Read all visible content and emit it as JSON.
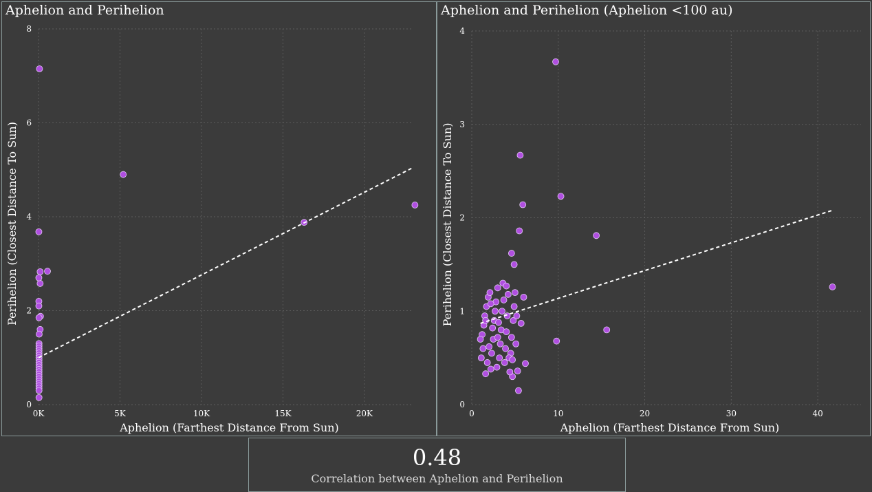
{
  "colors": {
    "background": "#3b3b3b",
    "point": "#b04fe0",
    "point_stroke": "#e2c8f5",
    "trend": "#ffffff",
    "border": "#8a9a9a"
  },
  "chart_data": [
    {
      "type": "scatter",
      "title": "Aphelion and Perihelion",
      "xlabel": "Aphelion (Farthest Distance From Sun)",
      "ylabel": "Perihelion (Closest Distance To Sun)",
      "xlim": [
        0,
        23000
      ],
      "ylim": [
        0,
        8
      ],
      "x_ticks": [
        0,
        5000,
        10000,
        15000,
        20000
      ],
      "x_tick_labels": [
        "0K",
        "5K",
        "10K",
        "15K",
        "20K"
      ],
      "y_ticks": [
        0,
        2,
        4,
        6,
        8
      ],
      "y_tick_labels": [
        "0",
        "2",
        "4",
        "6",
        "8"
      ],
      "grid": true,
      "trend_line": {
        "x": [
          0,
          23000
        ],
        "y": [
          1.0,
          5.05
        ]
      },
      "points": [
        {
          "x": 60,
          "y": 7.15
        },
        {
          "x": 5200,
          "y": 4.9
        },
        {
          "x": 16300,
          "y": 3.88
        },
        {
          "x": 23100,
          "y": 4.25
        },
        {
          "x": 20,
          "y": 3.68
        },
        {
          "x": 100,
          "y": 2.83
        },
        {
          "x": 550,
          "y": 2.84
        },
        {
          "x": 100,
          "y": 2.58
        },
        {
          "x": 20,
          "y": 2.7
        },
        {
          "x": 20,
          "y": 2.2
        },
        {
          "x": 20,
          "y": 2.1
        },
        {
          "x": 120,
          "y": 1.88
        },
        {
          "x": 30,
          "y": 1.85
        },
        {
          "x": 100,
          "y": 1.6
        },
        {
          "x": 40,
          "y": 1.5
        },
        {
          "x": 30,
          "y": 1.3
        },
        {
          "x": 30,
          "y": 1.25
        },
        {
          "x": 30,
          "y": 1.2
        },
        {
          "x": 30,
          "y": 1.15
        },
        {
          "x": 30,
          "y": 1.1
        },
        {
          "x": 30,
          "y": 1.05
        },
        {
          "x": 30,
          "y": 1.0
        },
        {
          "x": 30,
          "y": 0.95
        },
        {
          "x": 30,
          "y": 0.9
        },
        {
          "x": 30,
          "y": 0.85
        },
        {
          "x": 30,
          "y": 0.8
        },
        {
          "x": 30,
          "y": 0.75
        },
        {
          "x": 30,
          "y": 0.7
        },
        {
          "x": 30,
          "y": 0.65
        },
        {
          "x": 30,
          "y": 0.6
        },
        {
          "x": 30,
          "y": 0.55
        },
        {
          "x": 30,
          "y": 0.5
        },
        {
          "x": 30,
          "y": 0.45
        },
        {
          "x": 30,
          "y": 0.4
        },
        {
          "x": 30,
          "y": 0.35
        },
        {
          "x": 30,
          "y": 0.3
        },
        {
          "x": 30,
          "y": 0.15
        }
      ]
    },
    {
      "type": "scatter",
      "title": "Aphelion and Perihelion (Aphelion <100 au)",
      "xlabel": "Aphelion (Farthest Distance From Sun)",
      "ylabel": "Perihelion (Closest Distance To Sun)",
      "xlim": [
        0,
        45
      ],
      "ylim": [
        0,
        4
      ],
      "x_ticks": [
        0,
        10,
        20,
        30,
        40
      ],
      "x_tick_labels": [
        "0",
        "10",
        "20",
        "30",
        "40"
      ],
      "y_ticks": [
        0,
        1,
        2,
        3,
        4
      ],
      "y_tick_labels": [
        "0",
        "1",
        "2",
        "3",
        "4"
      ],
      "grid": true,
      "trend_line": {
        "x": [
          1,
          41.7
        ],
        "y": [
          0.87,
          2.08
        ]
      },
      "points": [
        {
          "x": 9.7,
          "y": 3.67
        },
        {
          "x": 5.6,
          "y": 2.67
        },
        {
          "x": 5.9,
          "y": 2.14
        },
        {
          "x": 10.3,
          "y": 2.23
        },
        {
          "x": 5.5,
          "y": 1.86
        },
        {
          "x": 14.4,
          "y": 1.81
        },
        {
          "x": 4.6,
          "y": 1.62
        },
        {
          "x": 4.9,
          "y": 1.5
        },
        {
          "x": 41.7,
          "y": 1.26
        },
        {
          "x": 15.6,
          "y": 0.8
        },
        {
          "x": 9.8,
          "y": 0.68
        },
        {
          "x": 5.4,
          "y": 0.15
        },
        {
          "x": 6.2,
          "y": 0.44
        },
        {
          "x": 6.0,
          "y": 1.15
        },
        {
          "x": 5.7,
          "y": 0.87
        },
        {
          "x": 5.3,
          "y": 0.36
        },
        {
          "x": 4.7,
          "y": 0.3
        },
        {
          "x": 1.6,
          "y": 0.33
        },
        {
          "x": 2.2,
          "y": 0.38
        },
        {
          "x": 1.1,
          "y": 0.5
        },
        {
          "x": 1.3,
          "y": 0.6
        },
        {
          "x": 1.2,
          "y": 0.75
        },
        {
          "x": 1.4,
          "y": 0.85
        },
        {
          "x": 1.5,
          "y": 0.95
        },
        {
          "x": 1.7,
          "y": 1.05
        },
        {
          "x": 1.9,
          "y": 1.15
        },
        {
          "x": 2.1,
          "y": 1.2
        },
        {
          "x": 2.3,
          "y": 0.55
        },
        {
          "x": 2.5,
          "y": 0.7
        },
        {
          "x": 2.6,
          "y": 0.9
        },
        {
          "x": 2.8,
          "y": 1.1
        },
        {
          "x": 3.0,
          "y": 1.25
        },
        {
          "x": 3.2,
          "y": 0.5
        },
        {
          "x": 3.3,
          "y": 0.65
        },
        {
          "x": 3.4,
          "y": 0.8
        },
        {
          "x": 3.5,
          "y": 1.0
        },
        {
          "x": 3.6,
          "y": 1.3
        },
        {
          "x": 3.8,
          "y": 0.45
        },
        {
          "x": 3.9,
          "y": 0.6
        },
        {
          "x": 4.0,
          "y": 0.78
        },
        {
          "x": 4.1,
          "y": 0.95
        },
        {
          "x": 4.2,
          "y": 1.18
        },
        {
          "x": 4.4,
          "y": 0.35
        },
        {
          "x": 4.5,
          "y": 0.55
        },
        {
          "x": 4.6,
          "y": 0.72
        },
        {
          "x": 4.8,
          "y": 0.9
        },
        {
          "x": 4.9,
          "y": 1.05
        },
        {
          "x": 5.0,
          "y": 1.2
        },
        {
          "x": 5.1,
          "y": 0.65
        },
        {
          "x": 1.8,
          "y": 0.45
        },
        {
          "x": 2.0,
          "y": 0.62
        },
        {
          "x": 2.4,
          "y": 0.82
        },
        {
          "x": 2.7,
          "y": 1.0
        },
        {
          "x": 2.9,
          "y": 0.4
        },
        {
          "x": 3.1,
          "y": 0.88
        },
        {
          "x": 3.7,
          "y": 1.12
        },
        {
          "x": 4.3,
          "y": 0.5
        },
        {
          "x": 1.0,
          "y": 0.7
        },
        {
          "x": 1.6,
          "y": 0.9
        },
        {
          "x": 2.2,
          "y": 1.08
        },
        {
          "x": 3.0,
          "y": 0.72
        },
        {
          "x": 4.0,
          "y": 1.27
        },
        {
          "x": 4.7,
          "y": 0.48
        },
        {
          "x": 5.2,
          "y": 0.95
        }
      ]
    }
  ],
  "kpi": {
    "value": "0.48",
    "caption": "Correlation between Aphelion and Perihelion"
  }
}
